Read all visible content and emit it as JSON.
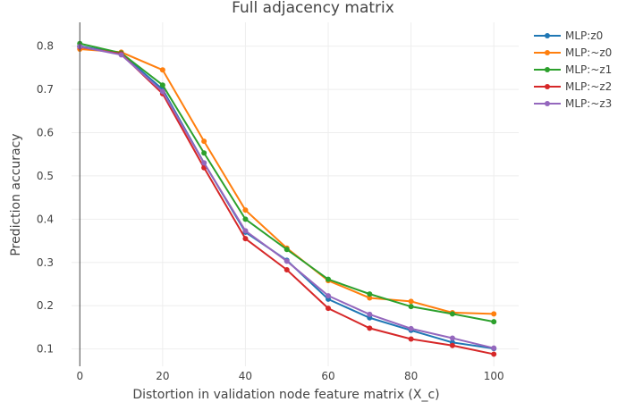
{
  "chart_data": {
    "type": "line",
    "title": "Full adjacency matrix",
    "xlabel": "Distortion in validation node feature matrix (X_c)",
    "ylabel": "Prediction accuracy",
    "x": [
      0,
      10,
      20,
      30,
      40,
      50,
      60,
      70,
      80,
      90,
      100
    ],
    "xlim": [
      -2,
      106
    ],
    "ylim": [
      0.06,
      0.855
    ],
    "xticks": [
      0,
      20,
      40,
      60,
      80,
      100
    ],
    "yticks": [
      0.1,
      0.2,
      0.3,
      0.4,
      0.5,
      0.6,
      0.7,
      0.8
    ],
    "xtick_labels": [
      "0",
      "20",
      "40",
      "60",
      "80",
      "100"
    ],
    "ytick_labels": [
      "0.1",
      "0.2",
      "0.3",
      "0.4",
      "0.5",
      "0.6",
      "0.7",
      "0.8"
    ],
    "grid": true,
    "legend_position": "top-right",
    "series": [
      {
        "name": "MLP:z0",
        "color": "#1f77b4",
        "values": [
          0.8,
          0.783,
          0.7,
          0.53,
          0.37,
          0.305,
          0.215,
          0.172,
          0.143,
          0.115,
          0.101
        ]
      },
      {
        "name": "MLP:~z0",
        "color": "#ff7f0e",
        "values": [
          0.793,
          0.786,
          0.745,
          0.58,
          0.421,
          0.333,
          0.258,
          0.218,
          0.21,
          0.184,
          0.181
        ]
      },
      {
        "name": "MLP:~z1",
        "color": "#2ca02c",
        "values": [
          0.806,
          0.784,
          0.71,
          0.553,
          0.4,
          0.33,
          0.261,
          0.227,
          0.198,
          0.181,
          0.163
        ]
      },
      {
        "name": "MLP:~z2",
        "color": "#d62728",
        "values": [
          0.798,
          0.782,
          0.69,
          0.519,
          0.355,
          0.283,
          0.194,
          0.148,
          0.123,
          0.108,
          0.088
        ]
      },
      {
        "name": "MLP:~z3",
        "color": "#9467bd",
        "values": [
          0.799,
          0.78,
          0.695,
          0.53,
          0.373,
          0.303,
          0.223,
          0.18,
          0.147,
          0.125,
          0.102
        ]
      }
    ]
  }
}
